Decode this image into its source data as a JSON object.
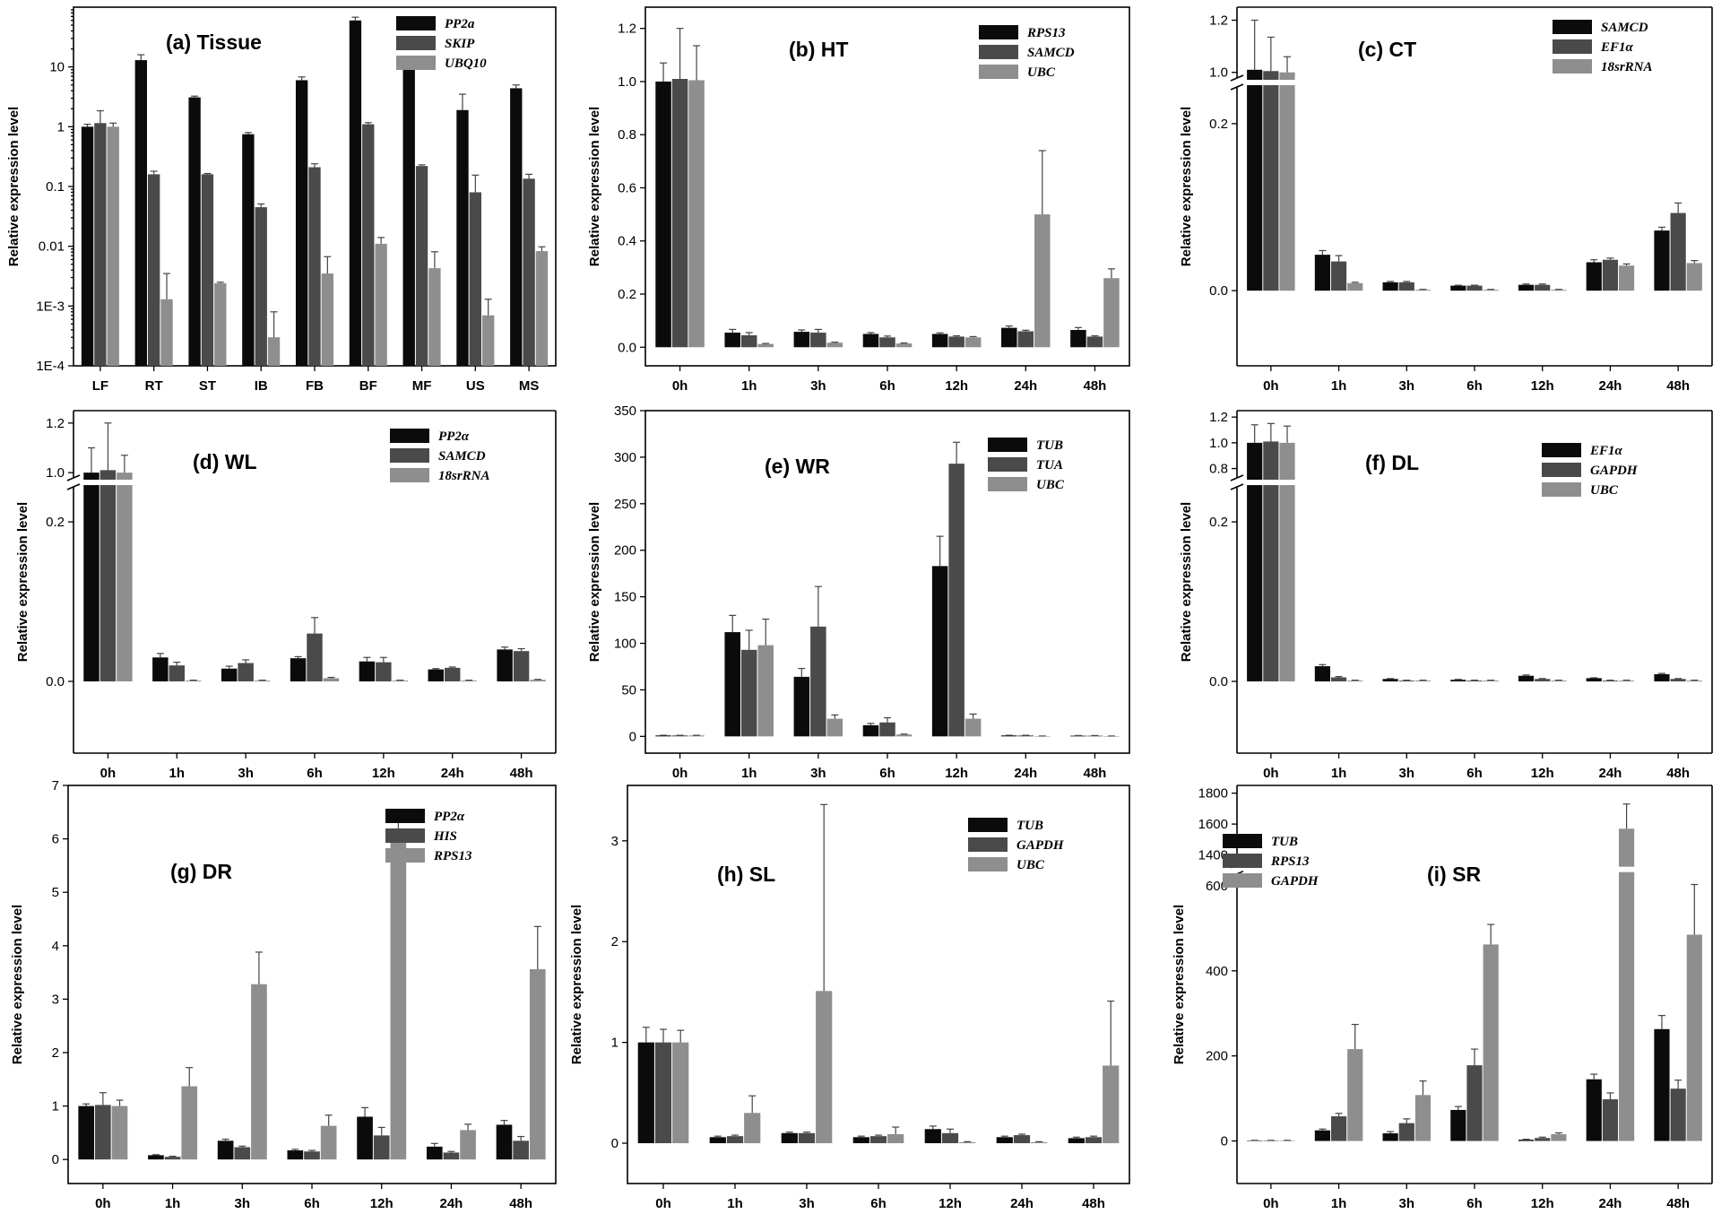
{
  "figure": {
    "colors": [
      "#0b0b0b",
      "#4a4a4a",
      "#8e8e8e"
    ],
    "ylabel": "Relative expression level",
    "time_labels": [
      "0h",
      "1h",
      "3h",
      "6h",
      "12h",
      "24h",
      "48h"
    ]
  },
  "chart_data": [
    {
      "id": "a",
      "type": "bar",
      "title": "(a) Tissue",
      "scale": "log",
      "ylabel": "Relative expression level",
      "ylim": [
        0.0001,
        100
      ],
      "yticks": [
        0.0001,
        0.001,
        0.01,
        0.1,
        1,
        10
      ],
      "yticklabels": [
        "1E-4",
        "1E-3",
        "0.01",
        "0.1",
        "1",
        "10"
      ],
      "categories": [
        "LF",
        "RT",
        "ST",
        "IB",
        "FB",
        "BF",
        "MF",
        "US",
        "MS"
      ],
      "series": [
        {
          "name": "PP2a",
          "values": [
            1.0,
            13,
            3.1,
            0.75,
            6.0,
            60,
            11.5,
            1.9,
            4.4
          ],
          "errors": [
            0.1,
            3,
            0.15,
            0.05,
            0.8,
            8,
            2.5,
            1.6,
            0.6
          ]
        },
        {
          "name": "SKIP",
          "values": [
            1.15,
            0.16,
            0.16,
            0.045,
            0.21,
            1.1,
            0.22,
            0.08,
            0.135
          ],
          "errors": [
            0.7,
            0.02,
            0.005,
            0.006,
            0.03,
            0.07,
            0.01,
            0.075,
            0.025
          ]
        },
        {
          "name": "UBQ10",
          "values": [
            1.0,
            0.0013,
            0.0024,
            0.0003,
            0.0035,
            0.011,
            0.0043,
            0.0007,
            0.0083
          ],
          "errors": [
            0.15,
            0.0022,
            0.0001,
            0.0005,
            0.0032,
            0.003,
            0.0038,
            0.0006,
            0.0015
          ]
        }
      ]
    },
    {
      "id": "b",
      "type": "bar",
      "title": "(b) HT",
      "scale": "linear",
      "ylabel": "Relative expression level",
      "ylim": [
        -0.07,
        1.28
      ],
      "yticks": [
        0,
        0.2,
        0.4,
        0.6,
        0.8,
        1.0,
        1.2
      ],
      "yticklabels": [
        "0.0",
        "0.2",
        "0.4",
        "0.6",
        "0.8",
        "1.0",
        "1.2"
      ],
      "categories": [
        "0h",
        "1h",
        "3h",
        "6h",
        "12h",
        "24h",
        "48h"
      ],
      "series": [
        {
          "name": "RPS13",
          "values": [
            1.0,
            0.055,
            0.058,
            0.05,
            0.05,
            0.073,
            0.065
          ],
          "errors": [
            0.07,
            0.012,
            0.007,
            0.005,
            0.004,
            0.007,
            0.009
          ]
        },
        {
          "name": "SAMCD",
          "values": [
            1.01,
            0.045,
            0.055,
            0.037,
            0.04,
            0.06,
            0.04
          ],
          "errors": [
            0.19,
            0.01,
            0.012,
            0.005,
            0.003,
            0.004,
            0.003
          ]
        },
        {
          "name": "UBC",
          "values": [
            1.005,
            0.012,
            0.017,
            0.014,
            0.037,
            0.5,
            0.26
          ],
          "errors": [
            0.13,
            0.002,
            0.002,
            0.002,
            0.003,
            0.24,
            0.035
          ]
        }
      ]
    },
    {
      "id": "c",
      "type": "bar",
      "title": "(c) CT",
      "scale": "broken",
      "ylabel": "Relative expression level",
      "ylim": [
        -0.09,
        1.25
      ],
      "break": {
        "low": [
          -0.09,
          0.245
        ],
        "high": [
          0.975,
          1.25
        ]
      },
      "yticks": [
        0,
        0.2,
        1.0,
        1.2
      ],
      "yticklabels": [
        "0.0",
        "0.2",
        "1.0",
        "1.2"
      ],
      "categories": [
        "0h",
        "1h",
        "3h",
        "6h",
        "12h",
        "24h",
        "48h"
      ],
      "series": [
        {
          "name": "SAMCD",
          "values": [
            1.01,
            0.043,
            0.01,
            0.006,
            0.007,
            0.034,
            0.072
          ],
          "errors": [
            0.19,
            0.005,
            0.001,
            0.0005,
            0.001,
            0.003,
            0.004
          ]
        },
        {
          "name": "EF1α",
          "values": [
            1.005,
            0.035,
            0.01,
            0.006,
            0.007,
            0.037,
            0.093
          ],
          "errors": [
            0.13,
            0.007,
            0.001,
            0.0005,
            0.001,
            0.002,
            0.012
          ]
        },
        {
          "name": "18srRNA",
          "values": [
            1.0,
            0.009,
            0.001,
            0.001,
            0.001,
            0.03,
            0.033
          ],
          "errors": [
            0.06,
            0.001,
            0.0005,
            0.0005,
            0.0005,
            0.002,
            0.003
          ]
        }
      ]
    },
    {
      "id": "d",
      "type": "bar",
      "title": "(d) WL",
      "scale": "broken",
      "ylabel": "Relative expression level",
      "ylim": [
        -0.09,
        1.25
      ],
      "break": {
        "low": [
          -0.09,
          0.245
        ],
        "high": [
          0.975,
          1.25
        ]
      },
      "yticks": [
        0,
        0.2,
        1.0,
        1.2
      ],
      "yticklabels": [
        "0.0",
        "0.2",
        "1.0",
        "1.2"
      ],
      "categories": [
        "0h",
        "1h",
        "3h",
        "6h",
        "12h",
        "24h",
        "48h"
      ],
      "series": [
        {
          "name": "PP2α",
          "values": [
            1.0,
            0.03,
            0.016,
            0.029,
            0.025,
            0.015,
            0.04
          ],
          "errors": [
            0.1,
            0.005,
            0.003,
            0.002,
            0.005,
            0.001,
            0.003
          ]
        },
        {
          "name": "SAMCD",
          "values": [
            1.01,
            0.02,
            0.023,
            0.06,
            0.024,
            0.017,
            0.038
          ],
          "errors": [
            0.19,
            0.004,
            0.004,
            0.02,
            0.006,
            0.001,
            0.003
          ]
        },
        {
          "name": "18srRNA",
          "values": [
            1.0,
            0.001,
            0.001,
            0.004,
            0.001,
            0.001,
            0.002
          ],
          "errors": [
            0.07,
            0.0005,
            0.0005,
            0.001,
            0.0005,
            0.0005,
            0.0005
          ]
        }
      ]
    },
    {
      "id": "e",
      "type": "bar",
      "title": "(e) WR",
      "scale": "linear",
      "ylabel": "Relative expression level",
      "ylim": [
        -18,
        350
      ],
      "yticks": [
        0,
        50,
        100,
        150,
        200,
        250,
        300,
        350
      ],
      "yticklabels": [
        "0",
        "50",
        "100",
        "150",
        "200",
        "250",
        "300",
        "350"
      ],
      "categories": [
        "0h",
        "1h",
        "3h",
        "6h",
        "12h",
        "24h",
        "48h"
      ],
      "series": [
        {
          "name": "TUB",
          "values": [
            1,
            112,
            64,
            12,
            183,
            1,
            0.7
          ],
          "errors": [
            0.2,
            18,
            9,
            2,
            32,
            0.2,
            0.2
          ]
        },
        {
          "name": "TUA",
          "values": [
            1,
            93,
            118,
            15,
            293,
            1,
            0.7
          ],
          "errors": [
            0.2,
            21,
            43,
            5,
            23,
            0.2,
            0.2
          ]
        },
        {
          "name": "UBC",
          "values": [
            1,
            98,
            19,
            2,
            19,
            0.3,
            0.3
          ],
          "errors": [
            0.2,
            28,
            4,
            0.5,
            5,
            0.1,
            0.1
          ]
        }
      ]
    },
    {
      "id": "f",
      "type": "bar",
      "title": "(f) DL",
      "scale": "broken",
      "ylabel": "Relative expression level",
      "ylim": [
        -0.09,
        1.25
      ],
      "break": {
        "low": [
          -0.09,
          0.245
        ],
        "high": [
          0.72,
          1.25
        ]
      },
      "yticks": [
        0,
        0.2,
        0.8,
        1.0,
        1.2
      ],
      "yticklabels": [
        "0.0",
        "0.2",
        "0.8",
        "1.0",
        "1.2"
      ],
      "categories": [
        "0h",
        "1h",
        "3h",
        "6h",
        "12h",
        "24h",
        "48h"
      ],
      "series": [
        {
          "name": "EF1α",
          "values": [
            1.0,
            0.019,
            0.003,
            0.002,
            0.007,
            0.004,
            0.009
          ],
          "errors": [
            0.14,
            0.002,
            0.0005,
            0.0005,
            0.001,
            0.0005,
            0.001
          ]
        },
        {
          "name": "GAPDH",
          "values": [
            1.01,
            0.005,
            0.001,
            0.001,
            0.003,
            0.001,
            0.003
          ],
          "errors": [
            0.14,
            0.001,
            0.0005,
            0.0005,
            0.0005,
            0.0005,
            0.0005
          ]
        },
        {
          "name": "UBC",
          "values": [
            1.0,
            0.001,
            0.001,
            0.001,
            0.001,
            0.001,
            0.001
          ],
          "errors": [
            0.13,
            0.0005,
            0.0005,
            0.0005,
            0.0005,
            0.0005,
            0.0005
          ]
        }
      ]
    },
    {
      "id": "g",
      "type": "bar",
      "title": "(g) DR",
      "scale": "linear",
      "ylabel": "Relative expression level",
      "ylim": [
        -0.45,
        7
      ],
      "yticks": [
        0,
        1,
        2,
        3,
        4,
        5,
        6,
        7
      ],
      "yticklabels": [
        "0",
        "1",
        "2",
        "3",
        "4",
        "5",
        "6",
        "7"
      ],
      "categories": [
        "0h",
        "1h",
        "3h",
        "6h",
        "12h",
        "24h",
        "48h"
      ],
      "series": [
        {
          "name": "PP2α",
          "values": [
            1.0,
            0.08,
            0.35,
            0.17,
            0.8,
            0.24,
            0.65
          ],
          "errors": [
            0.04,
            0.01,
            0.03,
            0.02,
            0.17,
            0.06,
            0.08
          ]
        },
        {
          "name": "HIS",
          "values": [
            1.02,
            0.05,
            0.23,
            0.15,
            0.45,
            0.13,
            0.35
          ],
          "errors": [
            0.23,
            0.01,
            0.02,
            0.02,
            0.15,
            0.02,
            0.08
          ]
        },
        {
          "name": "RPS13",
          "values": [
            1.0,
            1.37,
            3.28,
            0.63,
            6.05,
            0.55,
            3.56
          ],
          "errors": [
            0.11,
            0.35,
            0.6,
            0.2,
            0.32,
            0.11,
            0.8
          ]
        }
      ]
    },
    {
      "id": "h",
      "type": "bar",
      "title": "(h) SL",
      "scale": "linear",
      "ylabel": "Relative expression level",
      "ylim": [
        -0.4,
        3.55
      ],
      "yticks": [
        0,
        1,
        2,
        3
      ],
      "yticklabels": [
        "0",
        "1",
        "2",
        "3"
      ],
      "categories": [
        "0h",
        "1h",
        "3h",
        "6h",
        "12h",
        "24h",
        "48h"
      ],
      "series": [
        {
          "name": "TUB",
          "values": [
            1.0,
            0.06,
            0.1,
            0.06,
            0.14,
            0.06,
            0.05
          ],
          "errors": [
            0.15,
            0.01,
            0.01,
            0.01,
            0.03,
            0.01,
            0.01
          ]
        },
        {
          "name": "GAPDH",
          "values": [
            1.0,
            0.07,
            0.1,
            0.07,
            0.1,
            0.08,
            0.06
          ],
          "errors": [
            0.13,
            0.01,
            0.01,
            0.01,
            0.04,
            0.01,
            0.01
          ]
        },
        {
          "name": "UBC",
          "values": [
            1.0,
            0.3,
            1.51,
            0.09,
            0.01,
            0.01,
            0.77
          ],
          "errors": [
            0.12,
            0.17,
            1.85,
            0.07,
            0.005,
            0.005,
            0.64
          ]
        }
      ]
    },
    {
      "id": "i",
      "type": "bar",
      "title": "(i) SR",
      "scale": "broken",
      "ylabel": "Relative expression level",
      "ylim": [
        -100,
        1850
      ],
      "break": {
        "low": [
          -100,
          630
        ],
        "high": [
          1330,
          1850
        ]
      },
      "yticks": [
        0,
        200,
        400,
        600,
        1400,
        1600,
        1800
      ],
      "yticklabels": [
        "0",
        "200",
        "400",
        "600",
        "1400",
        "1600",
        "1800"
      ],
      "categories": [
        "0h",
        "1h",
        "3h",
        "6h",
        "12h",
        "24h",
        "48h"
      ],
      "series": [
        {
          "name": "TUB",
          "values": [
            1,
            25,
            18,
            73,
            3,
            145,
            263
          ],
          "errors": [
            0.5,
            3,
            4,
            8,
            1,
            12,
            32
          ]
        },
        {
          "name": "RPS13",
          "values": [
            1,
            58,
            42,
            178,
            7,
            98,
            123
          ],
          "errors": [
            0.5,
            7,
            10,
            38,
            2,
            15,
            20
          ]
        },
        {
          "name": "GAPDH",
          "values": [
            1,
            216,
            108,
            462,
            16,
            1570,
            485
          ],
          "errors": [
            0.5,
            58,
            33,
            47,
            3,
            160,
            118
          ]
        }
      ]
    }
  ]
}
